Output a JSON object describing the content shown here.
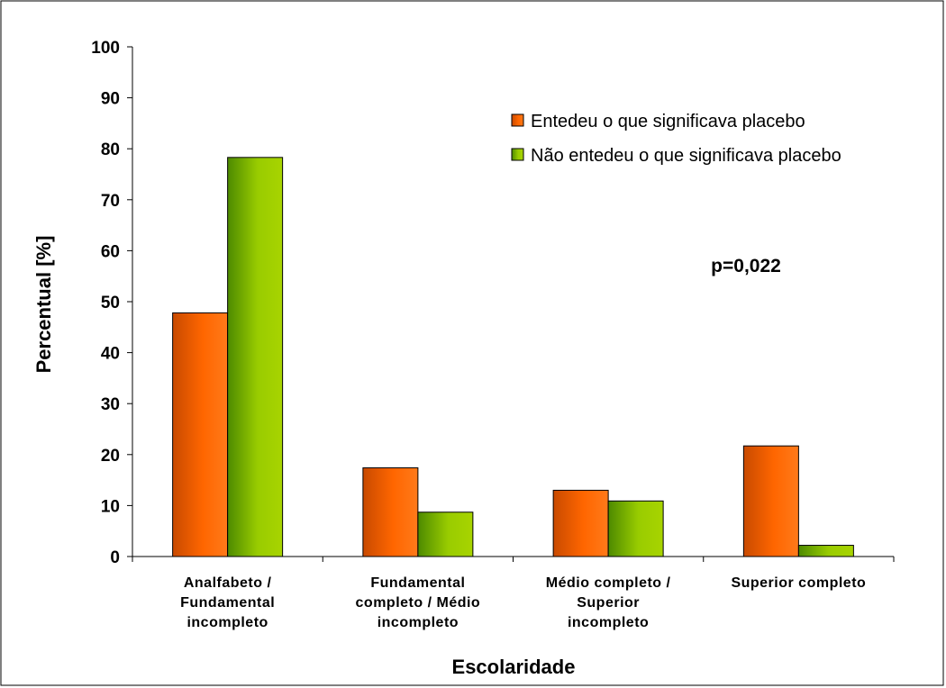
{
  "chart_data": {
    "type": "bar",
    "categories": [
      [
        "Analfabeto /",
        "Fundamental",
        "incompleto"
      ],
      [
        "Fundamental",
        "completo / Médio",
        "incompleto"
      ],
      [
        "Médio completo /",
        "Superior",
        "incompleto"
      ],
      [
        "Superior completo"
      ]
    ],
    "series": [
      {
        "name": "Entedeu o que significava placebo",
        "values": [
          47.8,
          17.4,
          13.0,
          21.7
        ],
        "color": "#ff6600"
      },
      {
        "name": "Não entedeu o que significava placebo",
        "values": [
          78.3,
          8.7,
          10.9,
          2.2
        ],
        "color": "#99cc00"
      }
    ],
    "xlabel": "Escolaridade",
    "ylabel": "Percentual [%]",
    "ylim": [
      0,
      100
    ],
    "yticks": [
      0,
      10,
      20,
      30,
      40,
      50,
      60,
      70,
      80,
      90,
      100
    ],
    "grid": false,
    "legend_position": "top-right",
    "annotation": "p=0,022"
  }
}
